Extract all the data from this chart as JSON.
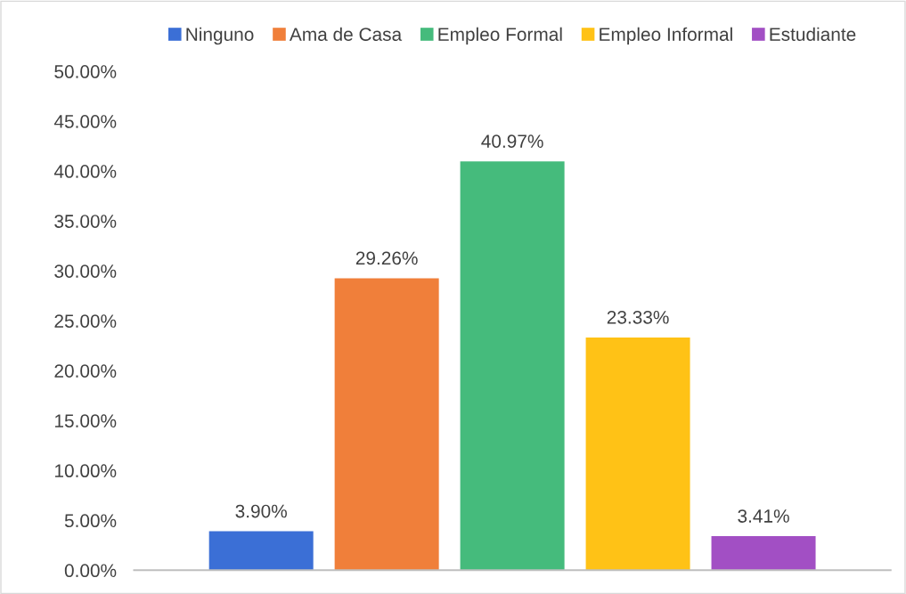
{
  "chart_data": {
    "type": "bar",
    "categories": [
      null
    ],
    "series": [
      {
        "name": "Ninguno",
        "color": "#3b6fd6",
        "values": [
          3.9
        ],
        "value_labels": [
          "3.90%"
        ]
      },
      {
        "name": "Ama de Casa",
        "color": "#f07f3a",
        "values": [
          29.26
        ],
        "value_labels": [
          "29.26%"
        ]
      },
      {
        "name": "Empleo Formal",
        "color": "#45bb7c",
        "values": [
          40.97
        ],
        "value_labels": [
          "40.97%"
        ]
      },
      {
        "name": "Empleo Informal",
        "color": "#ffc216",
        "values": [
          23.33
        ],
        "value_labels": [
          "23.33%"
        ]
      },
      {
        "name": "Estudiante",
        "color": "#a24fc4",
        "values": [
          3.41
        ],
        "value_labels": [
          "3.41%"
        ]
      }
    ],
    "ylim": [
      0,
      50
    ],
    "yticks": [
      {
        "value": 0,
        "label": "0.00%"
      },
      {
        "value": 5,
        "label": "5.00%"
      },
      {
        "value": 10,
        "label": "10.00%"
      },
      {
        "value": 15,
        "label": "15.00%"
      },
      {
        "value": 20,
        "label": "20.00%"
      },
      {
        "value": 25,
        "label": "25.00%"
      },
      {
        "value": 30,
        "label": "30.00%"
      },
      {
        "value": 35,
        "label": "35.00%"
      },
      {
        "value": 40,
        "label": "40.00%"
      },
      {
        "value": 45,
        "label": "45.00%"
      },
      {
        "value": 50,
        "label": "50.00%"
      }
    ],
    "grid": false,
    "legend": "top",
    "tick_labels": "y"
  }
}
